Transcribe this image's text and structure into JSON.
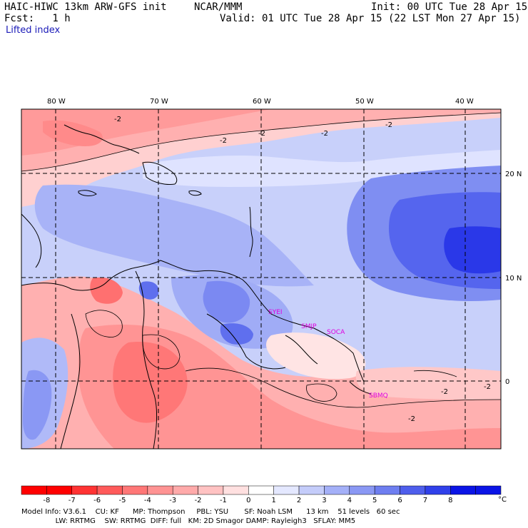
{
  "header": {
    "title": "HAIC-HIWC 13km ARW-GFS init",
    "org": "NCAR/MMM",
    "init": "Init: 00 UTC Tue 28 Apr 15",
    "fcst": "Fcst:   1 h",
    "valid": "Valid: 01 UTC Tue 28 Apr 15 (22 LST Mon 27 Apr 15)",
    "field": "Lifted index"
  },
  "map": {
    "lon_labels": [
      "80 W",
      "70 W",
      "60 W",
      "50 W",
      "40 W"
    ],
    "lat_labels": [
      "20 N",
      "10 N",
      "0"
    ],
    "contour_labels": [
      "-2",
      "-2",
      "-2",
      "-2",
      "-2",
      "-2",
      "-2",
      "-2"
    ],
    "stations": [
      "SYEI",
      "SMJP",
      "SOCA",
      "SBMQ"
    ]
  },
  "colorbar": {
    "labels": [
      "-8",
      "-7",
      "-6",
      "-5",
      "-4",
      "-3",
      "-2",
      "-1",
      "0",
      "1",
      "2",
      "3",
      "4",
      "5",
      "6",
      "7",
      "8"
    ],
    "unit": "°C",
    "colors": [
      "#ff0000",
      "#ff3333",
      "#ff5a5a",
      "#ff7777",
      "#ff9393",
      "#ffaaaa",
      "#ffc2c2",
      "#ffe0e0",
      "#ffffff",
      "#e4e8ff",
      "#c4ccfa",
      "#a4b0f8",
      "#8a98f4",
      "#6e7ef0",
      "#4e5eec",
      "#3040ea",
      "#0a14e6"
    ]
  },
  "footer": {
    "line1": "Model Info: V3.6.1    CU: KF      MP: Thompson     PBL: YSU       SF: Noah LSM      13 km    51 levels   60 sec",
    "line2": "               LW: RRTMG    SW: RRTMG  DIFF: full   KM: 2D Smagor DAMP: Rayleigh3   SFLAY: MM5"
  }
}
